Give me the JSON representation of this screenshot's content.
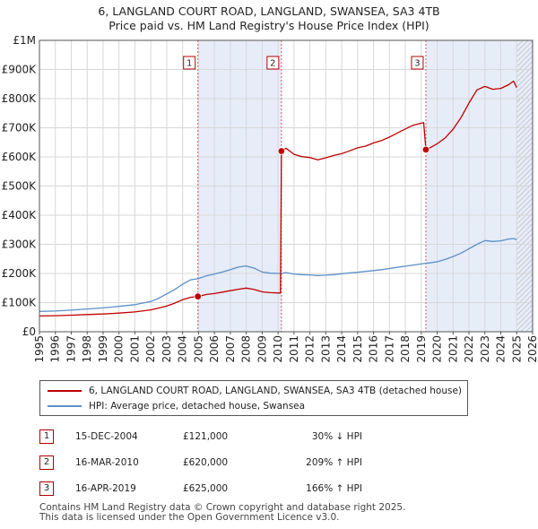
{
  "title": "6, LANGLAND COURT ROAD, LANGLAND, SWANSEA, SA3 4TB",
  "subtitle": "Price paid vs. HM Land Registry's House Price Index (HPI)",
  "colors": {
    "property": "#c00000",
    "hpi": "#5b8fc9",
    "shade": "#e6ecf8",
    "grid": "#d8d8d8",
    "marker_border": "#b00000"
  },
  "chart_data": {
    "type": "line",
    "xlim": [
      1995,
      2026
    ],
    "ylim": [
      0,
      1000000
    ],
    "y_ticks": [
      {
        "v": 0,
        "label": "£0"
      },
      {
        "v": 100000,
        "label": "£100K"
      },
      {
        "v": 200000,
        "label": "£200K"
      },
      {
        "v": 300000,
        "label": "£300K"
      },
      {
        "v": 400000,
        "label": "£400K"
      },
      {
        "v": 500000,
        "label": "£500K"
      },
      {
        "v": 600000,
        "label": "£600K"
      },
      {
        "v": 700000,
        "label": "£700K"
      },
      {
        "v": 800000,
        "label": "£800K"
      },
      {
        "v": 900000,
        "label": "£900K"
      },
      {
        "v": 1000000,
        "label": "£1M"
      }
    ],
    "x_ticks": [
      "1995",
      "1996",
      "1997",
      "1998",
      "1999",
      "2000",
      "2001",
      "2002",
      "2003",
      "2004",
      "2005",
      "2006",
      "2007",
      "2008",
      "2009",
      "2010",
      "2011",
      "2012",
      "2013",
      "2014",
      "2015",
      "2016",
      "2017",
      "2018",
      "2019",
      "2020",
      "2021",
      "2022",
      "2023",
      "2024",
      "2025",
      "2026"
    ],
    "shaded_ranges": [
      [
        2004.96,
        2010.21
      ],
      [
        2019.29,
        2026
      ]
    ],
    "hatch_from": 2025.0,
    "series": [
      {
        "name": "HPI: Average price, detached house, Swansea",
        "points": [
          [
            1995,
            70000
          ],
          [
            1996,
            71000
          ],
          [
            1997,
            74000
          ],
          [
            1998,
            78000
          ],
          [
            1999,
            82000
          ],
          [
            2000,
            87000
          ],
          [
            2001,
            93000
          ],
          [
            2002,
            104000
          ],
          [
            2002.5,
            115000
          ],
          [
            2003,
            130000
          ],
          [
            2003.5,
            145000
          ],
          [
            2004,
            163000
          ],
          [
            2004.5,
            178000
          ],
          [
            2004.96,
            182000
          ],
          [
            2005.5,
            192000
          ],
          [
            2006,
            198000
          ],
          [
            2006.5,
            205000
          ],
          [
            2007,
            213000
          ],
          [
            2007.5,
            222000
          ],
          [
            2008,
            226000
          ],
          [
            2008.5,
            218000
          ],
          [
            2009,
            205000
          ],
          [
            2009.5,
            201000
          ],
          [
            2010.21,
            200000
          ],
          [
            2010.5,
            203000
          ],
          [
            2011,
            198000
          ],
          [
            2011.5,
            196000
          ],
          [
            2012,
            195000
          ],
          [
            2012.5,
            193000
          ],
          [
            2013,
            194000
          ],
          [
            2013.5,
            196000
          ],
          [
            2014,
            199000
          ],
          [
            2014.5,
            202000
          ],
          [
            2015,
            204000
          ],
          [
            2015.5,
            207000
          ],
          [
            2016,
            210000
          ],
          [
            2016.5,
            213000
          ],
          [
            2017,
            217000
          ],
          [
            2017.5,
            221000
          ],
          [
            2018,
            225000
          ],
          [
            2018.5,
            229000
          ],
          [
            2019.29,
            235000
          ],
          [
            2019.5,
            236000
          ],
          [
            2020,
            240000
          ],
          [
            2020.5,
            248000
          ],
          [
            2021,
            258000
          ],
          [
            2021.5,
            270000
          ],
          [
            2022,
            285000
          ],
          [
            2022.5,
            300000
          ],
          [
            2023,
            313000
          ],
          [
            2023.5,
            310000
          ],
          [
            2024,
            312000
          ],
          [
            2024.5,
            318000
          ],
          [
            2024.8,
            320000
          ],
          [
            2025,
            316000
          ]
        ]
      },
      {
        "name": "6, LANGLAND COURT ROAD, LANGLAND, SWANSEA, SA3 4TB (detached house)",
        "points": [
          [
            1995,
            54000
          ],
          [
            1996,
            55000
          ],
          [
            1997,
            57000
          ],
          [
            1998,
            59000
          ],
          [
            1999,
            61000
          ],
          [
            2000,
            64000
          ],
          [
            2001,
            68000
          ],
          [
            2002,
            75000
          ],
          [
            2003,
            88000
          ],
          [
            2003.5,
            98000
          ],
          [
            2004,
            110000
          ],
          [
            2004.5,
            118000
          ],
          [
            2004.96,
            121000
          ],
          [
            2005.5,
            128000
          ],
          [
            2006,
            131000
          ],
          [
            2006.5,
            136000
          ],
          [
            2007,
            141000
          ],
          [
            2007.5,
            146000
          ],
          [
            2008,
            150000
          ],
          [
            2008.5,
            145000
          ],
          [
            2009,
            137000
          ],
          [
            2009.5,
            134000
          ],
          [
            2010.15,
            133000
          ],
          [
            2010.21,
            620000
          ],
          [
            2010.5,
            630000
          ],
          [
            2011,
            609000
          ],
          [
            2011.5,
            601000
          ],
          [
            2012,
            598000
          ],
          [
            2012.5,
            590000
          ],
          [
            2013,
            597000
          ],
          [
            2013.5,
            605000
          ],
          [
            2014,
            611000
          ],
          [
            2014.5,
            621000
          ],
          [
            2015,
            631000
          ],
          [
            2015.5,
            637000
          ],
          [
            2016,
            648000
          ],
          [
            2016.5,
            656000
          ],
          [
            2017,
            668000
          ],
          [
            2017.5,
            682000
          ],
          [
            2018,
            696000
          ],
          [
            2018.5,
            709000
          ],
          [
            2019.15,
            718000
          ],
          [
            2019.29,
            625000
          ],
          [
            2019.5,
            630000
          ],
          [
            2020,
            645000
          ],
          [
            2020.5,
            665000
          ],
          [
            2021,
            695000
          ],
          [
            2021.5,
            735000
          ],
          [
            2022,
            785000
          ],
          [
            2022.5,
            830000
          ],
          [
            2023,
            842000
          ],
          [
            2023.5,
            832000
          ],
          [
            2024,
            835000
          ],
          [
            2024.5,
            848000
          ],
          [
            2024.8,
            860000
          ],
          [
            2025,
            838000
          ]
        ]
      }
    ],
    "sales": [
      {
        "num": "1",
        "x": 2004.96,
        "y": 121000
      },
      {
        "num": "2",
        "x": 2010.21,
        "y": 620000
      },
      {
        "num": "3",
        "x": 2019.29,
        "y": 625000
      }
    ]
  },
  "legend": {
    "property_label": "6, LANGLAND COURT ROAD, LANGLAND, SWANSEA, SA3 4TB (detached house)",
    "hpi_label": "HPI: Average price, detached house, Swansea"
  },
  "transactions": [
    {
      "num": "1",
      "date": "15-DEC-2004",
      "price": "£121,000",
      "hpi": "30% ↓ HPI"
    },
    {
      "num": "2",
      "date": "16-MAR-2010",
      "price": "£620,000",
      "hpi": "209% ↑ HPI"
    },
    {
      "num": "3",
      "date": "16-APR-2019",
      "price": "£625,000",
      "hpi": "166% ↑ HPI"
    }
  ],
  "footer": {
    "line1": "Contains HM Land Registry data © Crown copyright and database right 2025.",
    "line2": "This data is licensed under the Open Government Licence v3.0."
  }
}
